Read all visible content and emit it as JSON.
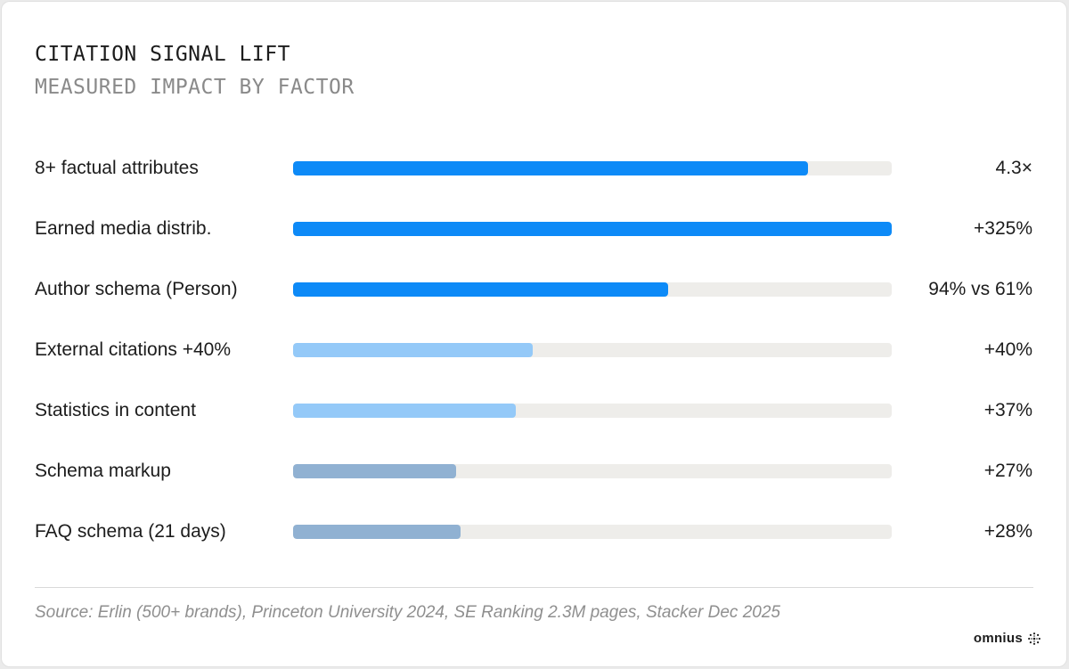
{
  "colors": {
    "primary": "#0d8af7",
    "light": "#94c9f8",
    "muted": "#90b1d2",
    "track": "#eeedea"
  },
  "header": {
    "title": "CITATION SIGNAL LIFT",
    "subtitle": "MEASURED IMPACT BY FACTOR"
  },
  "chart_data": {
    "type": "bar",
    "orientation": "horizontal",
    "categories": [
      "8+ factual attributes",
      "Earned media distrib.",
      "Author schema (Person)",
      "External citations +40%",
      "Statistics in content",
      "Schema markup",
      "FAQ schema (21 days)"
    ],
    "value_labels": [
      "4.3×",
      "+325%",
      "94% vs 61%",
      "+40%",
      "+37%",
      "+27%",
      "+28%"
    ],
    "bar_fill_fraction": [
      0.86,
      1.0,
      0.627,
      0.4,
      0.372,
      0.272,
      0.28
    ],
    "bar_color_group": [
      "primary",
      "primary",
      "primary",
      "light",
      "light",
      "muted",
      "muted"
    ],
    "title": "CITATION SIGNAL LIFT",
    "subtitle": "MEASURED IMPACT BY FACTOR",
    "legend": "none",
    "grid": false
  },
  "footer": {
    "source": "Source: Erlin (500+ brands), Princeton University 2024, SE Ranking 2.3M pages, Stacker Dec 2025",
    "brand": "omnius",
    "brand_icon": "sunburst-icon"
  }
}
